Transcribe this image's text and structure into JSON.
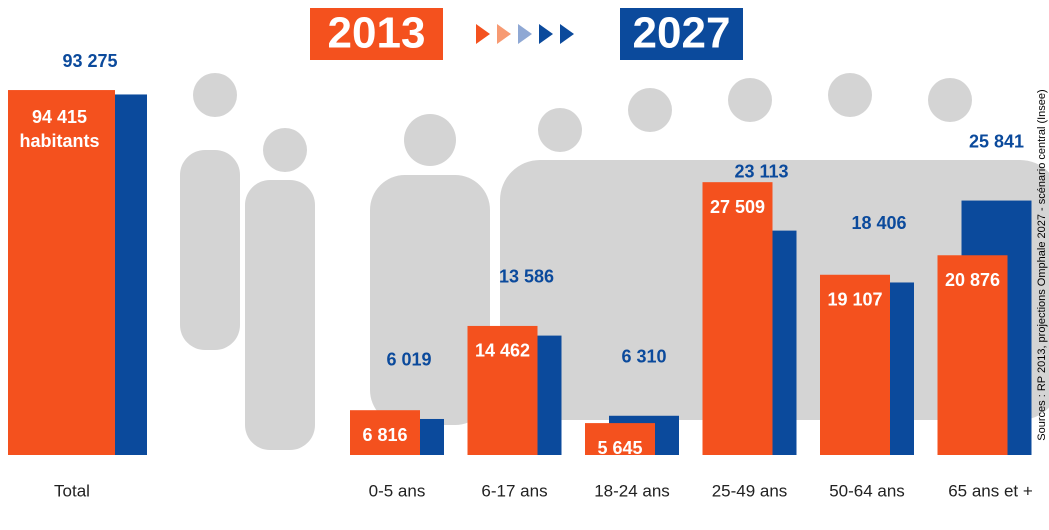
{
  "chart_data": [
    {
      "type": "bar",
      "categories": [
        "Total"
      ],
      "series": [
        {
          "color": "#f4511e",
          "values": [
            94415
          ],
          "value_labels": [
            "94 415"
          ]
        },
        {
          "color": "#0b4a9c",
          "values": [
            93275
          ],
          "value_labels": [
            "93 275"
          ]
        }
      ],
      "unit_label": "habitants",
      "ylim": [
        0,
        96500
      ]
    },
    {
      "type": "bar",
      "categories": [
        "0-5 ans",
        "6-17 ans",
        "18-24 ans",
        "25-49 ans",
        "50-64 ans",
        "65 ans et +"
      ],
      "series": [
        {
          "name": "2013",
          "color": "#f4511e",
          "values": [
            6816,
            14462,
            5645,
            27509,
            19107,
            20876
          ],
          "value_labels": [
            "6 816",
            "14 462",
            "5 645",
            "27 509",
            "19 107",
            "20 876"
          ]
        },
        {
          "name": "2027",
          "color": "#0b4a9c",
          "values": [
            6019,
            13586,
            6310,
            23113,
            18406,
            25841
          ],
          "value_labels": [
            "6 019",
            "13 586",
            "6 310",
            "23 113",
            "18 406",
            "25 841"
          ]
        }
      ],
      "ylim": [
        2750,
        36600
      ]
    }
  ],
  "source": "Sources : RP 2013, projections Omphale 2027 - scénario central (Insee)"
}
